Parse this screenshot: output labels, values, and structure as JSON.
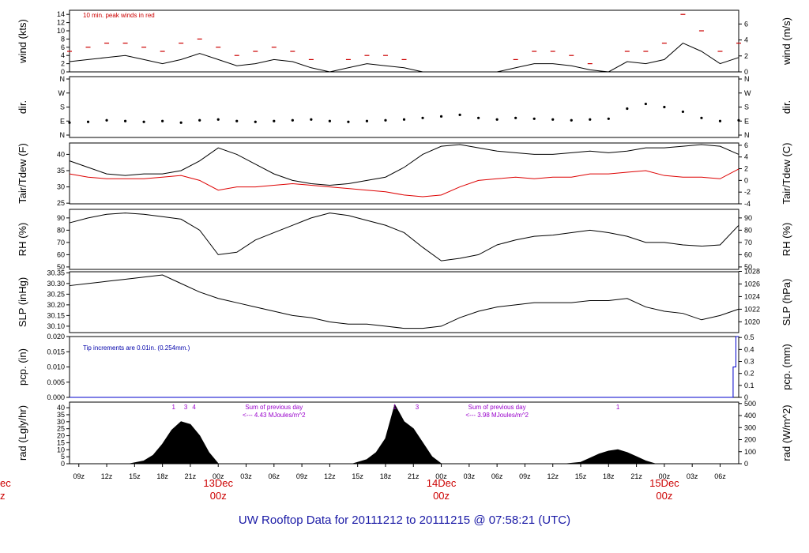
{
  "footer": "UW Rooftop Data for 20111212  to  20111215 @ 07:58:21  (UTC)",
  "colors": {
    "axis": "#000000",
    "wind_peak": "#cc0000",
    "tdew": "#dd0000",
    "pcp": "#0000cc",
    "note_blue": "#0000aa",
    "note_purple": "#9900cc",
    "day_label": "#cc0000"
  },
  "chart_data": [
    {
      "name": "wind",
      "type": "line",
      "ylabel_left": "wind (kts)",
      "ylabel_right": "wind (m/s)",
      "ylim_left": [
        0,
        15
      ],
      "yticks_left": [
        "0",
        "2",
        "4",
        "6",
        "8",
        "10",
        "12",
        "14"
      ],
      "ylim_right_ms": [
        0,
        7.72
      ],
      "yticks_right": [
        "0",
        "2",
        "4",
        "6"
      ],
      "annotation": "10 min. peak winds in red",
      "series": [
        {
          "name": "wind",
          "x": [
            0,
            2,
            4,
            6,
            8,
            10,
            12,
            14,
            16,
            18,
            20,
            22,
            24,
            26,
            28,
            30,
            32,
            34,
            36,
            38,
            40,
            42,
            44,
            46,
            48,
            50,
            52,
            54,
            56,
            58,
            60,
            62,
            64,
            66,
            68,
            70,
            72
          ],
          "values": [
            2.5,
            3,
            3.5,
            4,
            3,
            2,
            3,
            4.5,
            3,
            1.5,
            2,
            3,
            2.5,
            1,
            0,
            1,
            2,
            1.5,
            1,
            0,
            0,
            0,
            0,
            0,
            1,
            2,
            2,
            1.5,
            0.5,
            0,
            2.5,
            2,
            3,
            7,
            5,
            2,
            3.5
          ]
        },
        {
          "name": "10 min. peak winds",
          "x": [
            0,
            2,
            4,
            6,
            8,
            10,
            12,
            14,
            16,
            18,
            20,
            22,
            24,
            26,
            28,
            30,
            32,
            34,
            36,
            38,
            40,
            42,
            44,
            46,
            48,
            50,
            52,
            54,
            56,
            58,
            60,
            62,
            64,
            66,
            68,
            70,
            72
          ],
          "values": [
            5,
            6,
            7,
            7,
            6,
            5,
            7,
            8,
            6,
            4,
            5,
            6,
            5,
            3,
            0,
            3,
            4,
            4,
            3,
            0,
            0,
            0,
            0,
            0,
            3,
            5,
            5,
            4,
            2,
            0,
            5,
            5,
            7,
            14,
            10,
            5,
            7
          ]
        }
      ]
    },
    {
      "name": "dir",
      "type": "scatter",
      "ylabel_left": "dir.",
      "ylabel_right": "dir.",
      "ylim": [
        0,
        360
      ],
      "yticks": [
        "N",
        "E",
        "S",
        "W",
        "N"
      ],
      "series": [
        {
          "name": "direction",
          "x": [
            0,
            2,
            4,
            6,
            8,
            10,
            12,
            14,
            16,
            18,
            20,
            22,
            24,
            26,
            28,
            30,
            32,
            34,
            36,
            38,
            40,
            42,
            44,
            46,
            48,
            50,
            52,
            54,
            56,
            58,
            60,
            62,
            64,
            66,
            68,
            70,
            72
          ],
          "values": [
            80,
            85,
            95,
            90,
            85,
            90,
            80,
            95,
            100,
            90,
            85,
            90,
            95,
            100,
            90,
            85,
            90,
            95,
            100,
            110,
            120,
            130,
            110,
            100,
            110,
            105,
            100,
            95,
            100,
            105,
            170,
            200,
            180,
            150,
            110,
            90,
            95
          ]
        }
      ]
    },
    {
      "name": "temp",
      "type": "line",
      "ylabel_left": "Tair/Tdew (F)",
      "ylabel_right": "Tair/Tdew (C)",
      "ylim_left": [
        24.8,
        43.5
      ],
      "yticks_left": [
        "25",
        "30",
        "35",
        "40"
      ],
      "yticks_right": [
        "-4",
        "-2",
        "0",
        "2",
        "4",
        "6"
      ],
      "series": [
        {
          "name": "Tair",
          "x": [
            0,
            2,
            4,
            6,
            8,
            10,
            12,
            14,
            16,
            18,
            20,
            22,
            24,
            26,
            28,
            30,
            32,
            34,
            36,
            38,
            40,
            42,
            44,
            46,
            48,
            50,
            52,
            54,
            56,
            58,
            60,
            62,
            64,
            66,
            68,
            70,
            72
          ],
          "values": [
            38,
            36,
            34,
            33.5,
            34,
            34,
            35,
            38,
            42,
            40,
            37,
            34,
            32,
            31,
            30.5,
            31,
            32,
            33,
            36,
            40,
            42.5,
            43,
            42,
            41,
            40.5,
            40,
            40,
            40.5,
            41,
            40.5,
            41,
            42,
            42,
            42.5,
            43,
            42.5,
            40
          ]
        },
        {
          "name": "Tdew",
          "x": [
            0,
            2,
            4,
            6,
            8,
            10,
            12,
            14,
            16,
            18,
            20,
            22,
            24,
            26,
            28,
            30,
            32,
            34,
            36,
            38,
            40,
            42,
            44,
            46,
            48,
            50,
            52,
            54,
            56,
            58,
            60,
            62,
            64,
            66,
            68,
            70,
            72
          ],
          "values": [
            34,
            33,
            32.5,
            32.5,
            32.5,
            33,
            33.5,
            32,
            29,
            30,
            30,
            30.5,
            31,
            30.5,
            30,
            29.5,
            29,
            28.5,
            27.5,
            27,
            27.5,
            30,
            32,
            32.5,
            33,
            32.5,
            33,
            33,
            34,
            34,
            34.5,
            35,
            33.5,
            33,
            33,
            32.5,
            35.5
          ]
        }
      ]
    },
    {
      "name": "rh",
      "type": "line",
      "ylabel_left": "RH (%)",
      "ylabel_right": "RH (%)",
      "ylim": [
        48,
        97
      ],
      "yticks": [
        "50",
        "60",
        "70",
        "80",
        "90"
      ],
      "series": [
        {
          "name": "RH",
          "x": [
            0,
            2,
            4,
            6,
            8,
            10,
            12,
            14,
            16,
            18,
            20,
            22,
            24,
            26,
            28,
            30,
            32,
            34,
            36,
            38,
            40,
            42,
            44,
            46,
            48,
            50,
            52,
            54,
            56,
            58,
            60,
            62,
            64,
            66,
            68,
            70,
            72
          ],
          "values": [
            86,
            90,
            93,
            94,
            93,
            91,
            89,
            80,
            60,
            62,
            72,
            78,
            84,
            90,
            94,
            92,
            88,
            84,
            78,
            66,
            55,
            57,
            60,
            68,
            72,
            75,
            76,
            78,
            80,
            78,
            75,
            70,
            70,
            68,
            67,
            68,
            84
          ]
        }
      ]
    },
    {
      "name": "slp",
      "type": "line",
      "ylabel_left": "SLP (inHg)",
      "ylabel_right": "SLP (hPa)",
      "ylim_left": [
        30.07,
        30.355
      ],
      "yticks_left": [
        "30.10",
        "30.15",
        "30.20",
        "30.25",
        "30.30",
        "30.35"
      ],
      "yticks_right": [
        "1020",
        "1022",
        "1024",
        "1026",
        "1028"
      ],
      "series": [
        {
          "name": "SLP",
          "x": [
            0,
            2,
            4,
            6,
            8,
            10,
            12,
            14,
            16,
            18,
            20,
            22,
            24,
            26,
            28,
            30,
            32,
            34,
            36,
            38,
            40,
            42,
            44,
            46,
            48,
            50,
            52,
            54,
            56,
            58,
            60,
            62,
            64,
            66,
            68,
            70,
            72
          ],
          "values": [
            30.29,
            30.3,
            30.31,
            30.32,
            30.33,
            30.34,
            30.3,
            30.26,
            30.23,
            30.21,
            30.19,
            30.17,
            30.15,
            30.14,
            30.12,
            30.11,
            30.11,
            30.1,
            30.09,
            30.09,
            30.1,
            30.14,
            30.17,
            30.19,
            30.2,
            30.21,
            30.21,
            30.21,
            30.22,
            30.22,
            30.23,
            30.19,
            30.17,
            30.16,
            30.13,
            30.15,
            30.18
          ]
        }
      ]
    },
    {
      "name": "pcp",
      "type": "line",
      "ylabel_left": "pcp. (in)",
      "ylabel_right": "pcp. (mm)",
      "ylim": [
        0,
        0.02
      ],
      "yticks_left": [
        "0.000",
        "0.005",
        "0.010",
        "0.015",
        "0.020"
      ],
      "yticks_right": [
        "0",
        "0.1",
        "0.2",
        "0.3",
        "0.4",
        "0.5"
      ],
      "annotation": "Tip increments are 0.01in. (0.254mm.)",
      "series": [
        {
          "name": "pcp",
          "x": [
            0,
            71.4,
            71.4,
            71.7,
            71.7,
            72
          ],
          "values": [
            0,
            0,
            0.01,
            0.01,
            0.02,
            0.02
          ]
        }
      ]
    },
    {
      "name": "rad",
      "type": "area",
      "ylabel_left": "rad (Lgly/hr)",
      "ylabel_right": "rad (W/m^2)",
      "ylim_left": [
        0,
        44
      ],
      "yticks_left": [
        "0",
        "5",
        "10",
        "15",
        "20",
        "25",
        "30",
        "35",
        "40"
      ],
      "yticks_right": [
        "0",
        "100",
        "200",
        "300",
        "400",
        "500"
      ],
      "annotations": [
        {
          "text": "Sum of previous day",
          "x": 22
        },
        {
          "text": "<--- 4.43 MJoules/m^2",
          "x": 22
        },
        {
          "text": "Sum of previous day",
          "x": 46
        },
        {
          "text": "<--- 3.98 MJoules/m^2",
          "x": 46
        }
      ],
      "top_markers": [
        "1",
        "3",
        "4",
        "1",
        "3",
        "1"
      ],
      "top_markers_x": [
        11.2,
        12.5,
        13.4,
        35,
        37.4,
        59
      ],
      "series": [
        {
          "name": "radiation",
          "x": [
            6.5,
            8,
            9,
            10,
            11,
            12,
            13,
            14,
            15,
            16,
            30.5,
            32,
            33,
            34,
            35,
            36,
            37,
            38,
            39,
            40,
            53.5,
            55,
            56,
            57,
            58,
            59,
            60,
            61,
            62,
            63
          ],
          "values": [
            0,
            2,
            6,
            14,
            24,
            30,
            28,
            20,
            8,
            0,
            0,
            3,
            8,
            18,
            42,
            30,
            25,
            15,
            5,
            0,
            0,
            1,
            4,
            7,
            9,
            10,
            8,
            5,
            2,
            0
          ]
        }
      ]
    }
  ],
  "x_axis": {
    "hour_ticks": [
      "09z",
      "12z",
      "15z",
      "18z",
      "21z",
      "00z",
      "03z",
      "06z",
      "09z",
      "12z",
      "15z",
      "18z",
      "21z",
      "00z",
      "03z",
      "06z",
      "09z",
      "12z",
      "15z",
      "18z",
      "21z",
      "00z",
      "03z",
      "06z"
    ],
    "hour_ticks_x": [
      1,
      4,
      7,
      10,
      13,
      16,
      19,
      22,
      25,
      28,
      31,
      34,
      37,
      40,
      43,
      46,
      49,
      52,
      55,
      58,
      61,
      64,
      67,
      70
    ],
    "day_labels": [
      {
        "date": "13Dec",
        "time": "00z",
        "x": 16
      },
      {
        "date": "14Dec",
        "time": "00z",
        "x": 40
      },
      {
        "date": "15Dec",
        "time": "00z",
        "x": 64
      }
    ],
    "edge_label": {
      "date": "ec",
      "time": "z"
    },
    "xlim": [
      0,
      72
    ]
  }
}
